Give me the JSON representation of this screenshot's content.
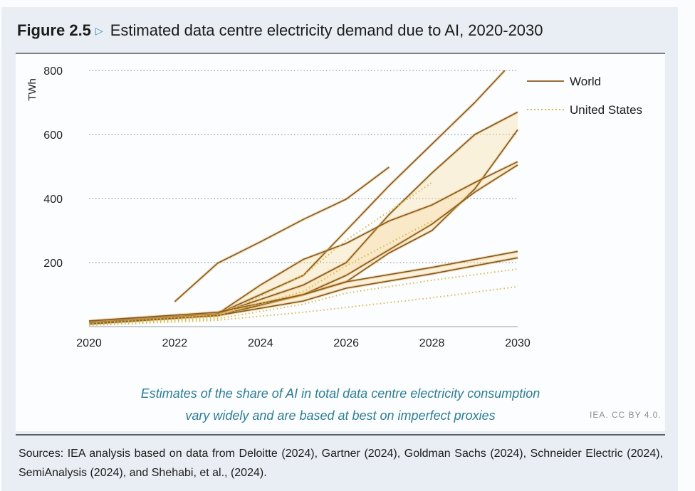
{
  "figure": {
    "label": "Figure 2.5",
    "marker_icon": "triangle-right-outline",
    "title": "Estimated data centre electricity demand due to AI, 2020-2030"
  },
  "credit": "IEA. CC BY 4.0.",
  "callout": {
    "line1": "Estimates of the share of AI in total data centre electricity consumption",
    "line2": "vary widely and are based at best on imperfect proxies"
  },
  "sources": "Sources: IEA analysis based on data from Deloitte (2024), Gartner (2024), Goldman Sachs (2024), Schneider Electric (2024), SemiAnalysis (2024), and Shehabi, et al., (2024).",
  "colors": {
    "world_line": "#7a5a32",
    "world_glow": "#f2b24a",
    "us_line": "#d9b94a",
    "band_fill": "#f7d9a0",
    "grid": "#9a9a9a",
    "callout_text": "#2c7d97"
  },
  "chart_data": {
    "type": "line",
    "title": "Estimated data centre electricity demand due to AI, 2020-2030",
    "xlabel": "",
    "ylabel": "TWh",
    "xlim": [
      2020,
      2030
    ],
    "ylim": [
      0,
      800
    ],
    "x_ticks": [
      "2020",
      "2022",
      "2024",
      "2026",
      "2028",
      "2030"
    ],
    "y_ticks": [
      "200",
      "400",
      "600",
      "800"
    ],
    "grid": "horizontal-dotted",
    "legend": {
      "position": "top-right",
      "entries": [
        {
          "name": "World",
          "style": "solid"
        },
        {
          "name": "United States",
          "style": "dotted"
        }
      ]
    },
    "series": [
      {
        "name": "World",
        "style": "solid",
        "points": [
          [
            2022,
            78
          ],
          [
            2023,
            198
          ],
          [
            2024,
            265
          ],
          [
            2025,
            335
          ],
          [
            2026,
            398
          ],
          [
            2027,
            498
          ]
        ]
      },
      {
        "name": "World",
        "style": "solid",
        "points": [
          [
            2020,
            15
          ],
          [
            2023,
            40
          ],
          [
            2025,
            160
          ],
          [
            2026,
            300
          ],
          [
            2027,
            440
          ],
          [
            2028,
            570
          ],
          [
            2029,
            700
          ],
          [
            2029.7,
            800
          ]
        ]
      },
      {
        "name": "World",
        "style": "solid",
        "points": [
          [
            2020,
            15
          ],
          [
            2023,
            40
          ],
          [
            2025,
            130
          ],
          [
            2026,
            200
          ],
          [
            2027,
            350
          ],
          [
            2028,
            480
          ],
          [
            2029,
            600
          ],
          [
            2030,
            670
          ]
        ]
      },
      {
        "name": "World",
        "style": "solid",
        "points": [
          [
            2020,
            12
          ],
          [
            2023,
            35
          ],
          [
            2025,
            100
          ],
          [
            2026,
            140
          ],
          [
            2027,
            230
          ],
          [
            2028,
            300
          ],
          [
            2029,
            430
          ],
          [
            2030,
            615
          ]
        ]
      },
      {
        "name": "World",
        "style": "solid",
        "points": [
          [
            2020,
            15
          ],
          [
            2023,
            40
          ],
          [
            2024,
            130
          ],
          [
            2025,
            210
          ],
          [
            2026,
            260
          ],
          [
            2027,
            330
          ],
          [
            2028,
            380
          ],
          [
            2029,
            450
          ],
          [
            2030,
            515
          ]
        ]
      },
      {
        "name": "World",
        "style": "solid",
        "points": [
          [
            2020,
            12
          ],
          [
            2023,
            35
          ],
          [
            2025,
            100
          ],
          [
            2026,
            160
          ],
          [
            2027,
            240
          ],
          [
            2028,
            320
          ],
          [
            2029,
            420
          ],
          [
            2030,
            505
          ]
        ]
      },
      {
        "name": "World",
        "style": "solid",
        "points": [
          [
            2020,
            18
          ],
          [
            2023,
            45
          ],
          [
            2025,
            100
          ],
          [
            2026,
            140
          ],
          [
            2028,
            185
          ],
          [
            2030,
            235
          ]
        ]
      },
      {
        "name": "World",
        "style": "solid",
        "points": [
          [
            2020,
            8
          ],
          [
            2023,
            35
          ],
          [
            2025,
            80
          ],
          [
            2026,
            120
          ],
          [
            2028,
            165
          ],
          [
            2030,
            215
          ]
        ]
      },
      {
        "name": "United States",
        "style": "dotted",
        "points": [
          [
            2020,
            8
          ],
          [
            2023,
            30
          ],
          [
            2025,
            160
          ],
          [
            2026,
            270
          ],
          [
            2027,
            360
          ],
          [
            2028,
            450
          ]
        ]
      },
      {
        "name": "United States",
        "style": "dotted",
        "points": [
          [
            2020,
            10
          ],
          [
            2023,
            35
          ],
          [
            2025,
            110
          ],
          [
            2026,
            190
          ],
          [
            2027,
            260
          ],
          [
            2028,
            330
          ]
        ]
      },
      {
        "name": "United States",
        "style": "dotted",
        "points": [
          [
            2020,
            6
          ],
          [
            2023,
            25
          ],
          [
            2025,
            70
          ],
          [
            2026,
            105
          ],
          [
            2028,
            145
          ],
          [
            2030,
            180
          ]
        ]
      },
      {
        "name": "United States",
        "style": "dotted",
        "points": [
          [
            2020,
            4
          ],
          [
            2023,
            20
          ],
          [
            2025,
            45
          ],
          [
            2026,
            60
          ],
          [
            2028,
            90
          ],
          [
            2030,
            125
          ]
        ]
      }
    ]
  }
}
